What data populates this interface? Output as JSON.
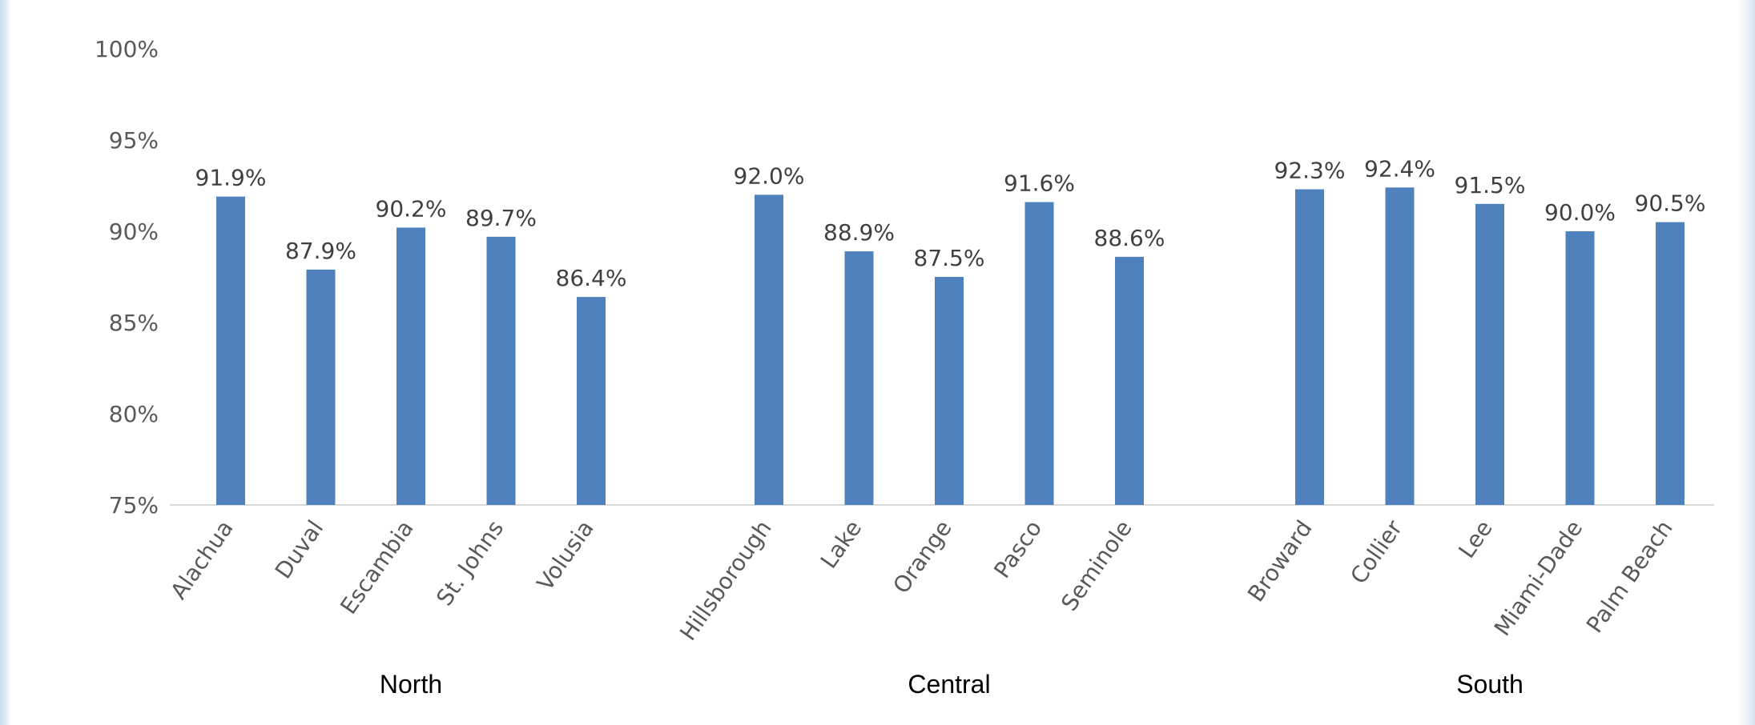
{
  "chart_data": {
    "type": "bar",
    "title": "",
    "xlabel": "",
    "ylabel": "",
    "ylim": [
      75,
      100
    ],
    "yticks": [
      "75%",
      "80%",
      "85%",
      "90%",
      "95%",
      "100%"
    ],
    "ytick_values": [
      75,
      80,
      85,
      90,
      95,
      100
    ],
    "grid": false,
    "legend": "none",
    "bar_color": "#4f81bd",
    "groups": [
      {
        "name": "North",
        "categories": [
          "Alachua",
          "Duval",
          "Escambia",
          "St. Johns",
          "Volusia"
        ],
        "values": [
          91.9,
          87.9,
          90.2,
          89.7,
          86.4
        ],
        "labels": [
          "91.9%",
          "87.9%",
          "90.2%",
          "89.7%",
          "86.4%"
        ]
      },
      {
        "name": "Central",
        "categories": [
          "Hillsborough",
          "Lake",
          "Orange",
          "Pasco",
          "Seminole"
        ],
        "values": [
          92.0,
          88.9,
          87.5,
          91.6,
          88.6
        ],
        "labels": [
          "92.0%",
          "88.9%",
          "87.5%",
          "91.6%",
          "88.6%"
        ]
      },
      {
        "name": "South",
        "categories": [
          "Broward",
          "Collier",
          "Lee",
          "Miami-Dade",
          "Palm Beach"
        ],
        "values": [
          92.3,
          92.4,
          91.5,
          90.0,
          90.5
        ],
        "labels": [
          "92.3%",
          "92.4%",
          "91.5%",
          "90.0%",
          "90.5%"
        ]
      }
    ]
  }
}
